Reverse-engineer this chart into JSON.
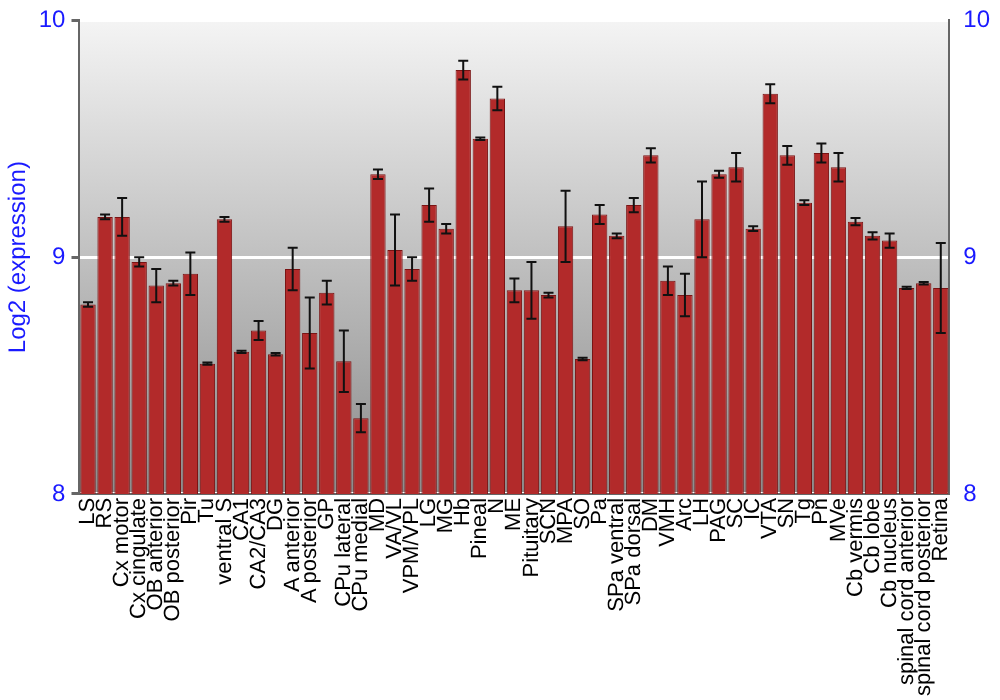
{
  "chart_data": {
    "type": "bar",
    "ylabel": "Log2 (expression)",
    "categories": [
      "LS",
      "RS",
      "Cx motor",
      "Cx cingulate",
      "OB anterior",
      "OB posterior",
      "Pir",
      "Tu",
      "ventral S",
      "CA1",
      "CA2/CA3",
      "DG",
      "A anterior",
      "A posterior",
      "GP",
      "CPu lateral",
      "CPu medial",
      "MD",
      "VA/VL",
      "VPM/VPL",
      "LG",
      "MG",
      "Hb",
      "Pineal",
      "N",
      "ME",
      "Pituitary",
      "SCN",
      "MPA",
      "SO",
      "Pa",
      "SPa ventral",
      "SPa dorsal",
      "DM",
      "VMH",
      "Arc",
      "LH",
      "PAG",
      "SC",
      "IC",
      "VTA",
      "SN",
      "Tg",
      "Pn",
      "MVe",
      "Cb vermis",
      "Cb lobe",
      "Cb nucleus",
      "spinal cord anterior",
      "spinal cord posterior",
      "Retina"
    ],
    "values": [
      8.8,
      9.17,
      9.17,
      8.98,
      8.88,
      8.89,
      8.93,
      8.55,
      9.16,
      8.6,
      8.69,
      8.59,
      8.95,
      8.68,
      8.85,
      8.56,
      8.32,
      9.35,
      9.03,
      8.95,
      9.22,
      9.12,
      9.79,
      9.5,
      9.67,
      8.86,
      8.86,
      8.84,
      9.13,
      8.57,
      9.18,
      9.09,
      9.22,
      9.43,
      8.9,
      8.84,
      9.16,
      9.35,
      9.38,
      9.12,
      9.69,
      9.43,
      9.23,
      9.44,
      9.38,
      9.15,
      9.09,
      9.07,
      8.87,
      8.89,
      8.87
    ],
    "errors": [
      0.01,
      0.01,
      0.08,
      0.02,
      0.07,
      0.01,
      0.09,
      0.005,
      0.01,
      0.005,
      0.04,
      0.005,
      0.09,
      0.15,
      0.05,
      0.13,
      0.06,
      0.02,
      0.15,
      0.05,
      0.07,
      0.02,
      0.04,
      0.005,
      0.05,
      0.05,
      0.12,
      0.01,
      0.15,
      0.005,
      0.04,
      0.01,
      0.03,
      0.03,
      0.06,
      0.09,
      0.16,
      0.015,
      0.06,
      0.01,
      0.04,
      0.04,
      0.01,
      0.04,
      0.06,
      0.015,
      0.015,
      0.03,
      0.005,
      0.005,
      0.19
    ],
    "color": "#b22a2a",
    "ylim": [
      8,
      10
    ],
    "yticks": [
      8,
      9,
      10
    ],
    "y2lim": [
      8,
      10
    ],
    "y2ticks": [
      8,
      9,
      10
    ],
    "grid": "y",
    "legend": false
  }
}
